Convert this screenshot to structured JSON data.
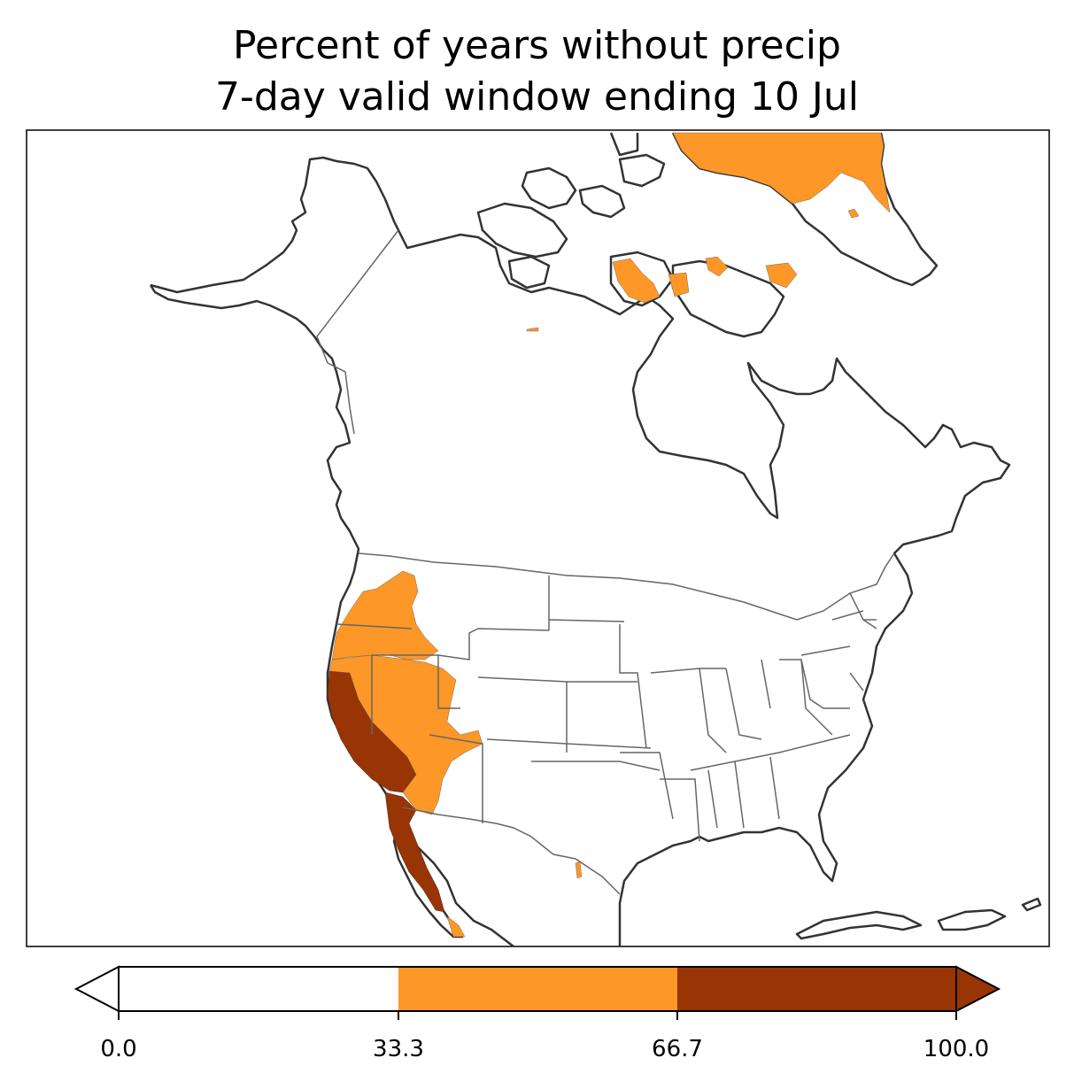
{
  "title": {
    "line1": "Percent of years without precip",
    "line2": "7-day valid window ending 10 Jul"
  },
  "colorbar": {
    "ticks": [
      "0.0",
      "33.3",
      "66.7",
      "100.0"
    ],
    "bins": [
      {
        "from": 0.0,
        "to": 33.3,
        "color": "#ffffff"
      },
      {
        "from": 33.3,
        "to": 66.7,
        "color": "#fd9728"
      },
      {
        "from": 66.7,
        "to": 100.0,
        "color": "#993404"
      }
    ]
  },
  "colors": {
    "low": "#ffffff",
    "mid": "#fd9728",
    "high": "#993404",
    "coastline": "#333333",
    "borders": "#666666"
  }
}
